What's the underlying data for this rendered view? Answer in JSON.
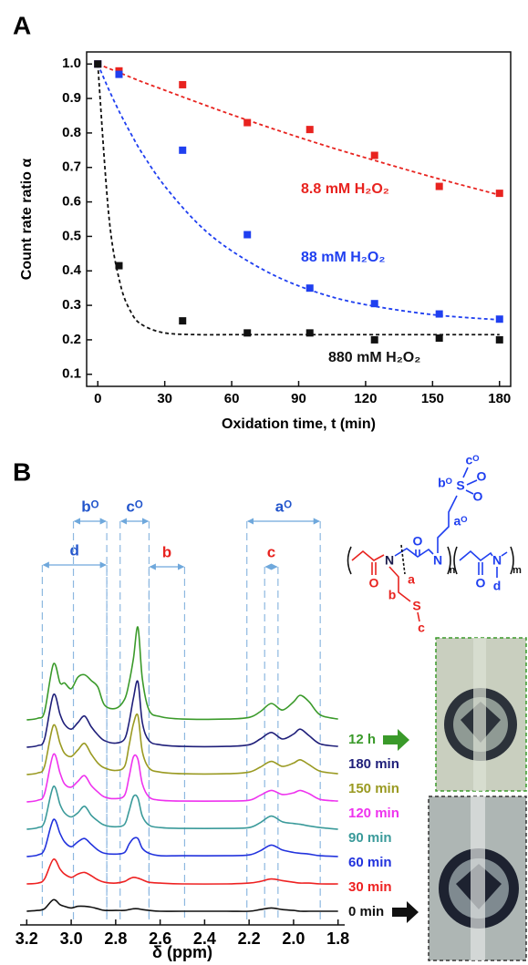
{
  "chart_data": [
    {
      "type": "scatter",
      "label": "A",
      "xlabel": "Oxidation time, t (min)",
      "ylabel": "Count rate ratio α",
      "xlim": [
        -5,
        185
      ],
      "ylim": [
        0.065,
        1.035
      ],
      "xticks": [
        0,
        30,
        60,
        90,
        120,
        150,
        180
      ],
      "yticks": [
        0.1,
        0.2,
        0.3,
        0.4,
        0.5,
        0.6,
        0.7,
        0.8,
        0.9,
        {
          "value": 1,
          "label": "1.0"
        }
      ],
      "x": [
        0,
        9.5,
        38,
        67,
        95,
        124,
        153,
        180
      ],
      "fit_x": [
        0,
        5,
        10,
        15,
        20,
        30,
        45,
        60,
        80,
        100,
        120,
        150,
        180
      ],
      "series": [
        {
          "name": "8.8 mM H₂O₂",
          "color": "#e8231f",
          "values": [
            1.0,
            0.98,
            0.94,
            0.83,
            0.81,
            0.735,
            0.645,
            0.625
          ],
          "fit_values": [
            1.0,
            0.987,
            0.974,
            0.961,
            0.948,
            0.924,
            0.888,
            0.853,
            0.809,
            0.767,
            0.728,
            0.672,
            0.62
          ]
        },
        {
          "name": "88 mM H₂O₂",
          "color": "#1f3ff0",
          "values": [
            1.0,
            0.97,
            0.75,
            0.505,
            0.35,
            0.305,
            0.275,
            0.26
          ],
          "fit_values": [
            1.0,
            0.925,
            0.857,
            0.796,
            0.74,
            0.646,
            0.536,
            0.458,
            0.384,
            0.334,
            0.302,
            0.273,
            0.258
          ]
        },
        {
          "name": "880 mM H₂O₂",
          "color": "#111111",
          "values": [
            1.0,
            0.415,
            0.255,
            0.22,
            0.22,
            0.2,
            0.205,
            0.2
          ],
          "fit_values": [
            1.0,
            0.557,
            0.364,
            0.279,
            0.243,
            0.22,
            0.215,
            0.215,
            0.215,
            0.215,
            0.215,
            0.215,
            0.215
          ]
        }
      ]
    },
    {
      "type": "line",
      "label": "B",
      "xlabel": "δ (ppm)",
      "xlim": [
        3.23,
        1.77
      ],
      "xticks": [
        3.2,
        {
          "value": 3,
          "label": "3.0"
        },
        2.8,
        2.6,
        2.4,
        2.2,
        {
          "value": 2,
          "label": "2.0"
        },
        1.8
      ],
      "x": [
        3.2,
        3.15,
        3.12,
        3.08,
        3.05,
        3.03,
        3.0,
        2.97,
        2.94,
        2.91,
        2.88,
        2.85,
        2.8,
        2.76,
        2.74,
        2.72,
        2.7,
        2.68,
        2.65,
        2.6,
        2.5,
        2.3,
        2.2,
        2.15,
        2.1,
        2.05,
        2.0,
        1.97,
        1.93,
        1.88,
        1.8
      ],
      "series": [
        {
          "name": "12 h",
          "color": "#3a9a2a",
          "values": [
            0,
            2,
            10,
            68,
            45,
            45,
            38,
            52,
            55,
            48,
            40,
            18,
            14,
            25,
            45,
            75,
            113,
            50,
            12,
            4,
            1,
            1,
            3,
            10,
            20,
            12,
            22,
            30,
            22,
            6,
            1
          ]
        },
        {
          "name": "180 min",
          "color": "#1f1f7a",
          "values": [
            0,
            2,
            10,
            64,
            40,
            28,
            22,
            30,
            38,
            25,
            15,
            8,
            5,
            10,
            30,
            60,
            80,
            30,
            8,
            3,
            1,
            1,
            3,
            10,
            18,
            10,
            16,
            22,
            14,
            4,
            1
          ]
        },
        {
          "name": "150 min",
          "color": "#9a9a22",
          "values": [
            0,
            2,
            10,
            60,
            38,
            26,
            22,
            30,
            38,
            25,
            14,
            8,
            5,
            10,
            35,
            62,
            72,
            28,
            8,
            3,
            1,
            1,
            3,
            9,
            16,
            10,
            14,
            18,
            12,
            4,
            1
          ]
        },
        {
          "name": "120 min",
          "color": "#ee33ee",
          "values": [
            0,
            2,
            10,
            58,
            35,
            22,
            18,
            25,
            32,
            20,
            12,
            6,
            4,
            8,
            30,
            55,
            52,
            22,
            6,
            2,
            1,
            1,
            2,
            8,
            14,
            9,
            11,
            14,
            10,
            3,
            1
          ]
        },
        {
          "name": "90 min",
          "color": "#3a9a9a",
          "values": [
            0,
            2,
            9,
            52,
            30,
            20,
            15,
            20,
            28,
            17,
            10,
            5,
            3,
            6,
            22,
            40,
            38,
            16,
            5,
            2,
            1,
            1,
            2,
            8,
            16,
            9,
            7,
            6,
            4,
            2,
            0
          ]
        },
        {
          "name": "60 min",
          "color": "#2233dd",
          "values": [
            0,
            2,
            9,
            45,
            28,
            18,
            12,
            18,
            22,
            15,
            8,
            4,
            3,
            5,
            15,
            22,
            22,
            10,
            4,
            1,
            1,
            1,
            2,
            7,
            14,
            8,
            5,
            4,
            3,
            1,
            0
          ]
        },
        {
          "name": "30 min",
          "color": "#ee2222",
          "values": [
            0,
            1,
            6,
            30,
            18,
            12,
            8,
            12,
            14,
            10,
            5,
            2,
            1,
            3,
            6,
            8,
            7,
            5,
            2,
            1,
            0,
            0,
            1,
            3,
            6,
            4,
            2,
            1,
            1,
            0,
            0
          ]
        },
        {
          "name": "0 min",
          "color": "#111111",
          "values": [
            0,
            1,
            3,
            14,
            8,
            6,
            4,
            6,
            6,
            5,
            3,
            1,
            1,
            1,
            2,
            3,
            3,
            2,
            1,
            0,
            0,
            0,
            0,
            2,
            4,
            2,
            1,
            0,
            0,
            0,
            0
          ]
        }
      ],
      "regions": [
        {
          "label": "d",
          "from": 3.13,
          "to": 2.84,
          "color": "#2255cc"
        },
        {
          "label": "bᴼ",
          "from": 2.99,
          "to": 2.84,
          "color": "#2255cc"
        },
        {
          "label": "cᴼ",
          "from": 2.78,
          "to": 2.65,
          "color": "#2255cc"
        },
        {
          "label": "b",
          "from": 2.65,
          "to": 2.49,
          "color": "#e8231f"
        },
        {
          "label": "aᴼ",
          "from": 2.21,
          "to": 1.88,
          "color": "#2255cc"
        },
        {
          "label": "c",
          "from": 2.13,
          "to": 2.07,
          "color": "#e8231f"
        }
      ]
    }
  ],
  "structure": {
    "labels": [
      {
        "text": "cᴼ",
        "color": "#1f3ff0"
      },
      {
        "text": "bᴼ",
        "color": "#1f3ff0"
      },
      {
        "text": "S",
        "color": "#1f3ff0"
      },
      {
        "text": "O",
        "color": "#1f3ff0"
      },
      {
        "text": "O",
        "color": "#1f3ff0"
      },
      {
        "text": "aᴼ",
        "color": "#1f3ff0"
      },
      {
        "text": "O",
        "color": "#e8231f"
      },
      {
        "text": "N",
        "color": "#1a1a4a"
      },
      {
        "text": "O",
        "color": "#1f3ff0"
      },
      {
        "text": "N",
        "color": "#1f3ff0"
      },
      {
        "text": "n",
        "color": "#111111"
      },
      {
        "text": "O",
        "color": "#1f3ff0"
      },
      {
        "text": "N",
        "color": "#1f3ff0"
      },
      {
        "text": "m",
        "color": "#111111"
      },
      {
        "text": "d",
        "color": "#1f3ff0"
      },
      {
        "text": "a",
        "color": "#e8231f"
      },
      {
        "text": "b",
        "color": "#e8231f"
      },
      {
        "text": "S",
        "color": "#e8231f"
      },
      {
        "text": "c",
        "color": "#e8231f"
      }
    ]
  }
}
